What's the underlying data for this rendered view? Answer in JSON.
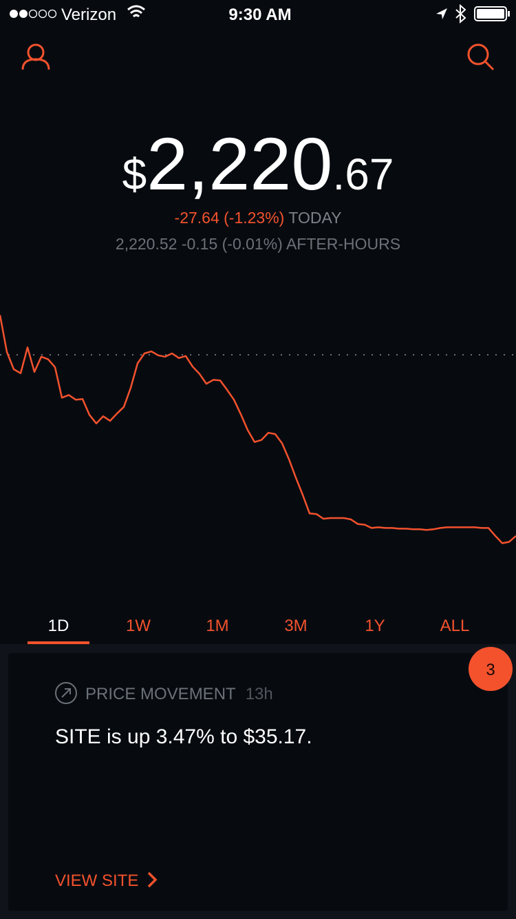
{
  "status_bar": {
    "carrier": "Verizon",
    "time": "9:30 AM"
  },
  "price": {
    "currency": "$",
    "whole": "2,220",
    "cents": ".67"
  },
  "change": {
    "today_value": "-27.64 (-1.23%)",
    "today_label": "TODAY",
    "after_hours": "2,220.52 -0.15 (-0.01%) AFTER-HOURS"
  },
  "chart_data": {
    "type": "line",
    "color": "#f4522d",
    "ylim": [
      2218.6,
      2256.1
    ],
    "values": [
      2254.3,
      2248.7,
      2246.1,
      2245.5,
      2249.4,
      2245.7,
      2248.0,
      2247.6,
      2246.4,
      2241.8,
      2242.2,
      2241.5,
      2241.6,
      2239.2,
      2237.9,
      2239.0,
      2238.3,
      2239.4,
      2240.4,
      2243.3,
      2247.0,
      2248.5,
      2248.8,
      2248.2,
      2248.0,
      2248.5,
      2247.8,
      2248.1,
      2246.5,
      2245.4,
      2243.9,
      2244.5,
      2244.4,
      2243.0,
      2241.5,
      2239.3,
      2236.9,
      2235.1,
      2235.4,
      2236.5,
      2236.3,
      2234.9,
      2232.5,
      2229.7,
      2227.1,
      2224.3,
      2224.2,
      2223.5,
      2223.6,
      2223.6,
      2223.6,
      2223.4,
      2222.7,
      2222.6,
      2222.1,
      2222.2,
      2222.1,
      2222.1,
      2222.0,
      2222.0,
      2221.9,
      2221.9,
      2221.8,
      2221.9,
      2222.1,
      2222.2,
      2222.2,
      2222.2,
      2222.2,
      2222.2,
      2222.1,
      2222.1,
      2220.9,
      2219.8,
      2220.0,
      2220.9
    ]
  },
  "tabs": [
    "1D",
    "1W",
    "1M",
    "3M",
    "1Y",
    "ALL"
  ],
  "card": {
    "badge": "3",
    "category": "PRICE MOVEMENT",
    "age": "13h",
    "message": "SITE is up 3.47% to $35.17.",
    "action": "VIEW SITE"
  }
}
